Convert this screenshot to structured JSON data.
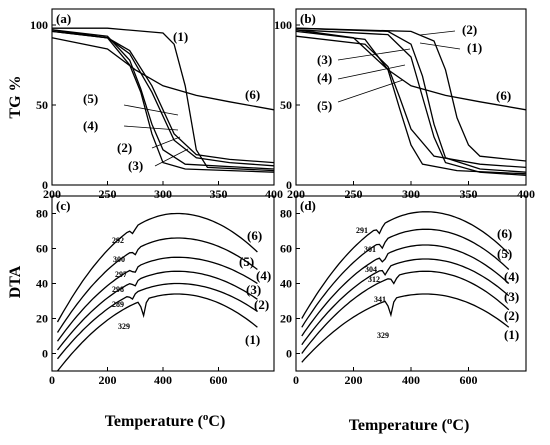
{
  "chart_data": [
    {
      "panel": "(a)",
      "type": "line",
      "xlim": [
        200,
        400
      ],
      "ylim": [
        0,
        110
      ],
      "xticks": [
        "200",
        "250",
        "300",
        "350",
        "400"
      ],
      "yticks": [
        "0",
        "50",
        "100"
      ],
      "ylabel": "TG %",
      "series": [
        {
          "name": "(1)",
          "x": [
            200,
            250,
            300,
            310,
            320,
            330,
            340,
            400
          ],
          "y": [
            98,
            98,
            95,
            88,
            62,
            22,
            11,
            9
          ]
        },
        {
          "name": "(2)",
          "x": [
            200,
            250,
            270,
            280,
            290,
            300,
            320,
            400
          ],
          "y": [
            97,
            92,
            75,
            58,
            32,
            14,
            10,
            8
          ]
        },
        {
          "name": "(3)",
          "x": [
            200,
            250,
            270,
            280,
            290,
            300,
            320,
            400
          ],
          "y": [
            97,
            93,
            78,
            60,
            38,
            22,
            13,
            10
          ]
        },
        {
          "name": "(4)",
          "x": [
            200,
            250,
            270,
            290,
            310,
            330,
            360,
            400
          ],
          "y": [
            96,
            92,
            82,
            58,
            28,
            17,
            14,
            12
          ]
        },
        {
          "name": "(5)",
          "x": [
            200,
            250,
            270,
            290,
            310,
            330,
            360,
            400
          ],
          "y": [
            96,
            92,
            84,
            62,
            32,
            19,
            16,
            14
          ]
        },
        {
          "name": "(6)",
          "x": [
            200,
            250,
            275,
            300,
            330,
            360,
            400
          ],
          "y": [
            92,
            85,
            72,
            62,
            56,
            52,
            47
          ]
        }
      ],
      "series_labels": [
        "(1)",
        "(2)",
        "(3)",
        "(4)",
        "(5)",
        "(6)"
      ]
    },
    {
      "panel": "(b)",
      "type": "line",
      "xlim": [
        200,
        400
      ],
      "ylim": [
        0,
        110
      ],
      "xticks": [
        "200",
        "250",
        "300",
        "350",
        "400"
      ],
      "yticks": [
        "0",
        "50",
        "100"
      ],
      "series": [
        {
          "name": "(1)",
          "x": [
            200,
            300,
            320,
            330,
            340,
            350,
            360,
            400
          ],
          "y": [
            98,
            96,
            90,
            72,
            42,
            25,
            18,
            15
          ]
        },
        {
          "name": "(2)",
          "x": [
            200,
            280,
            300,
            310,
            320,
            330,
            360,
            400
          ],
          "y": [
            98,
            96,
            88,
            68,
            38,
            17,
            10,
            8
          ]
        },
        {
          "name": "(3)",
          "x": [
            200,
            280,
            300,
            310,
            320,
            330,
            360,
            400
          ],
          "y": [
            97,
            94,
            80,
            55,
            30,
            14,
            8,
            6
          ]
        },
        {
          "name": "(4)",
          "x": [
            200,
            260,
            280,
            290,
            300,
            310,
            340,
            400
          ],
          "y": [
            96,
            91,
            72,
            48,
            25,
            13,
            9,
            7
          ]
        },
        {
          "name": "(5)",
          "x": [
            200,
            260,
            280,
            290,
            300,
            320,
            360,
            400
          ],
          "y": [
            93,
            88,
            74,
            55,
            35,
            18,
            13,
            11
          ]
        },
        {
          "name": "(6)",
          "x": [
            200,
            250,
            280,
            300,
            330,
            360,
            400
          ],
          "y": [
            97,
            92,
            72,
            62,
            56,
            52,
            47
          ]
        }
      ],
      "series_labels": [
        "(2)",
        "(1)",
        "(3)",
        "(4)",
        "(5)",
        "(6)"
      ]
    },
    {
      "panel": "(c)",
      "type": "line",
      "xlim": [
        0,
        800
      ],
      "ylim": [
        -10,
        90
      ],
      "xticks": [
        "0",
        "200",
        "400",
        "600"
      ],
      "yticks": [
        "0",
        "20",
        "40",
        "60",
        "80"
      ],
      "ylabel": "DTA",
      "xlabel": "Temperature (oC)",
      "curves": [
        {
          "name": "(1)",
          "top": 34,
          "peak_t": 329,
          "depth": 9,
          "start": -10,
          "end": 15
        },
        {
          "name": "(2)",
          "top": 40,
          "peak_t": 289,
          "depth": 3,
          "start": -3,
          "end": 24
        },
        {
          "name": "(3)",
          "top": 47,
          "peak_t": 298,
          "depth": 3,
          "start": 2,
          "end": 31
        },
        {
          "name": "(4)",
          "top": 55,
          "peak_t": 297,
          "depth": 3,
          "start": 7,
          "end": 40
        },
        {
          "name": "(5)",
          "top": 66,
          "peak_t": 300,
          "depth": 3,
          "start": 12,
          "end": 48
        },
        {
          "name": "(6)",
          "top": 80,
          "peak_t": 292,
          "depth": 3,
          "start": 18,
          "end": 58
        }
      ],
      "peak_labels": [
        "292",
        "300",
        "297",
        "298",
        "289",
        "329"
      ],
      "series_labels": [
        "(6)",
        "(5)",
        "(4)",
        "(3)",
        "(2)",
        "(1)"
      ]
    },
    {
      "panel": "(d)",
      "type": "line",
      "xlim": [
        0,
        800
      ],
      "ylim": [
        -10,
        90
      ],
      "xticks": [
        "0",
        "200",
        "400",
        "600"
      ],
      "yticks": [
        "0",
        "20",
        "40",
        "60",
        "80"
      ],
      "xlabel": "Temperature (oC)",
      "curves": [
        {
          "name": "(1)",
          "top": 34,
          "peak_t": 329,
          "depth": 9,
          "start": -5,
          "end": 15
        },
        {
          "name": "(2)",
          "top": 47,
          "peak_t": 341,
          "depth": 4,
          "start": 0,
          "end": 25
        },
        {
          "name": "(3)",
          "top": 54,
          "peak_t": 312,
          "depth": 4,
          "start": 5,
          "end": 33
        },
        {
          "name": "(4)",
          "top": 62,
          "peak_t": 304,
          "depth": 4,
          "start": 10,
          "end": 40
        },
        {
          "name": "(5)",
          "top": 71,
          "peak_t": 301,
          "depth": 4,
          "start": 15,
          "end": 48
        },
        {
          "name": "(6)",
          "top": 81,
          "peak_t": 291,
          "depth": 4,
          "start": 20,
          "end": 57
        }
      ],
      "peak_labels": [
        "291",
        "301",
        "304",
        "312",
        "341",
        "329"
      ],
      "series_labels": [
        "(6)",
        "(5)",
        "(4)",
        "(3)",
        "(2)",
        "(1)"
      ]
    }
  ]
}
